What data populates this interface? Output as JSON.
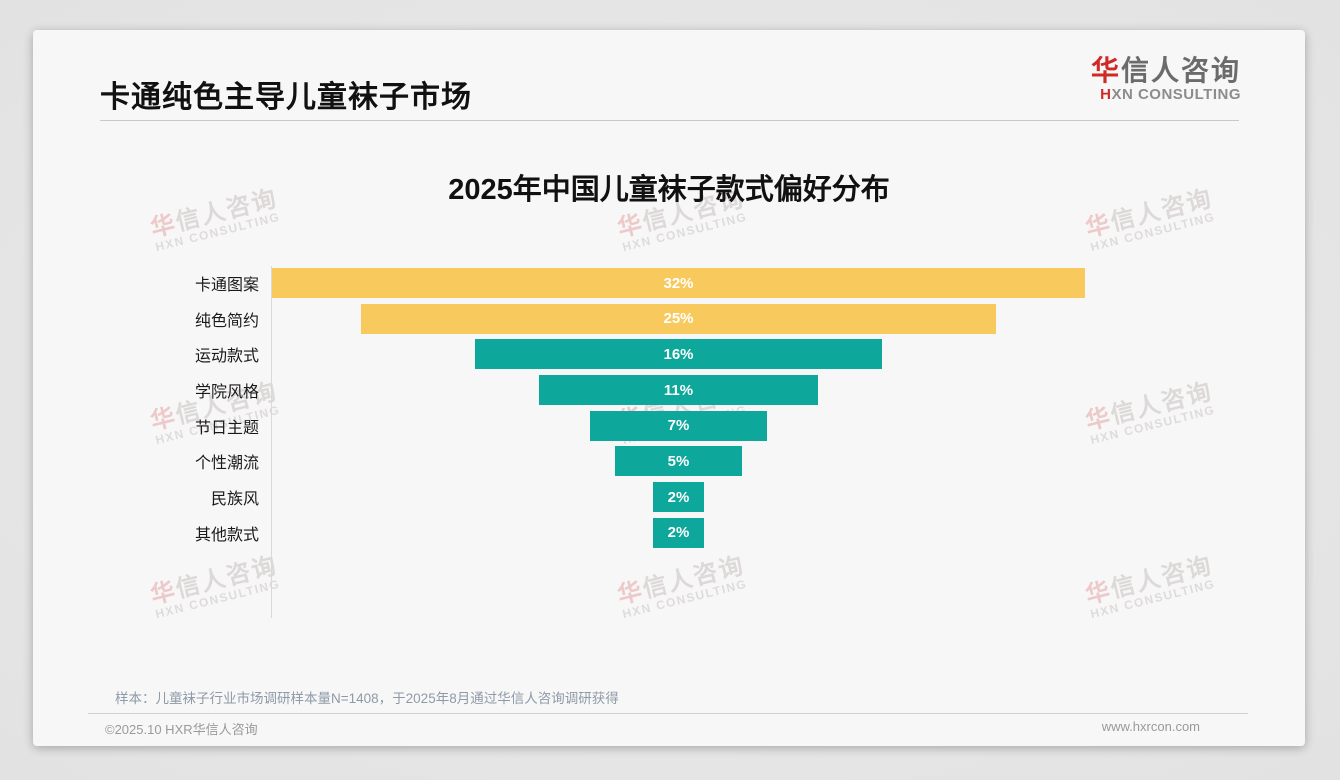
{
  "header": {
    "title": "卡通纯色主导儿童袜子市场"
  },
  "logo": {
    "cn_first": "华",
    "cn_rest": "信人咨询",
    "en_first": "H",
    "en_rest": "XN CONSULTING",
    "accent_color": "#CE2B26"
  },
  "chart_data": {
    "type": "bar",
    "variant": "horizontal-centered-funnel",
    "title": "2025年中国儿童袜子款式偏好分布",
    "categories": [
      "卡通图案",
      "纯色简约",
      "运动款式",
      "学院风格",
      "节日主题",
      "个性潮流",
      "民族风",
      "其他款式"
    ],
    "values": [
      32,
      25,
      16,
      11,
      7,
      5,
      2,
      2
    ],
    "unit": "%",
    "data_labels": [
      "32%",
      "25%",
      "16%",
      "11%",
      "7%",
      "5%",
      "2%",
      "2%"
    ],
    "xlim": [
      0,
      32
    ],
    "grid": false,
    "legend": false,
    "highlight_count": 2,
    "colors": {
      "highlight_bar": "#F8C95C",
      "default_bar": "#0EA79C",
      "value_label": "#FFFFFF"
    }
  },
  "footnote": {
    "sample_note": "样本：儿童袜子行业市场调研样本量N=1408，于2025年8月通过华信人咨询调研获得"
  },
  "footer": {
    "copyright": "©2025.10 HXR华信人咨询",
    "website": "www.hxrcon.com"
  },
  "watermark": {
    "line1_first": "华",
    "line1_rest": "信人咨询",
    "line2": "HXN CONSULTING"
  }
}
